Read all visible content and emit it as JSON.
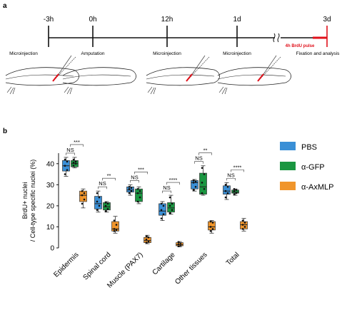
{
  "panel_a": {
    "label": "a",
    "timepoints": [
      "-3h",
      "0h",
      "12h",
      "1d",
      "3d"
    ],
    "events": [
      "Microinjection",
      "Amputation",
      "Microinjection",
      "Microinjection",
      "Fixation and analysis"
    ],
    "pulse_label": "4h BrdU pulse",
    "pulse_color": "#e0101a"
  },
  "panel_b": {
    "label": "b"
  },
  "chart_data": {
    "type": "box",
    "ylabel": "BrdU+ nuclei\n/ Cell-type specific nuclei (%)",
    "ylim": [
      0,
      45
    ],
    "yticks": [
      0,
      10,
      20,
      30,
      40
    ],
    "categories": [
      "Epidermis",
      "Spinal cord",
      "Muscle (PAX7)",
      "Cartilage",
      "Other tissues",
      "Total"
    ],
    "series": [
      {
        "name": "PBS",
        "color": "#3a8fd6",
        "boxes": [
          {
            "min": 34,
            "q1": 36.5,
            "median": 39,
            "q3": 41.5,
            "max": 43,
            "points": [
              35,
              37,
              39,
              41,
              42
            ]
          },
          {
            "min": 17,
            "q1": 18.5,
            "median": 21,
            "q3": 24.5,
            "max": 27,
            "points": [
              18,
              20,
              22,
              24,
              26
            ]
          },
          {
            "min": 25,
            "q1": 26.5,
            "median": 27.5,
            "q3": 29,
            "max": 30,
            "points": [
              26,
              27,
              28,
              28.5,
              29
            ]
          },
          {
            "min": 13,
            "q1": 15.5,
            "median": 17.5,
            "q3": 21,
            "max": 22,
            "points": [
              14,
              16,
              18,
              20,
              21
            ]
          },
          {
            "min": 27,
            "q1": 28,
            "median": 31,
            "q3": 32,
            "max": 32.5,
            "points": [
              27.5,
              29,
              31,
              31.5,
              32
            ]
          },
          {
            "min": 23,
            "q1": 25.5,
            "median": 27,
            "q3": 29.5,
            "max": 31,
            "points": [
              24,
              26,
              27,
              29,
              30
            ]
          }
        ]
      },
      {
        "name": "α-GFP",
        "color": "#1a9641",
        "boxes": [
          {
            "min": 38,
            "q1": 38.5,
            "median": 40,
            "q3": 41.5,
            "max": 43,
            "points": [
              39,
              40,
              40.5,
              41,
              42
            ]
          },
          {
            "min": 17,
            "q1": 18,
            "median": 19.5,
            "q3": 21.5,
            "max": 22,
            "points": [
              17.5,
              18.5,
              20,
              21,
              21.5
            ]
          },
          {
            "min": 21,
            "q1": 22,
            "median": 26,
            "q3": 28,
            "max": 29,
            "points": [
              22,
              24,
              26,
              27,
              28
            ]
          },
          {
            "min": 16,
            "q1": 17,
            "median": 19,
            "q3": 21.5,
            "max": 25,
            "points": [
              16.5,
              18,
              20,
              21,
              24
            ]
          },
          {
            "min": 25,
            "q1": 25.5,
            "median": 29,
            "q3": 35.5,
            "max": 39,
            "points": [
              26,
              28,
              31,
              35,
              38
            ]
          },
          {
            "min": 25,
            "q1": 26,
            "median": 26.5,
            "q3": 27.5,
            "max": 28,
            "points": [
              25.5,
              26,
              27,
              27.5,
              28
            ]
          }
        ]
      },
      {
        "name": "α-AxMLP",
        "color": "#f0952b",
        "boxes": [
          {
            "min": 19,
            "q1": 22,
            "median": 25,
            "q3": 27,
            "max": 28,
            "points": [
              21,
              23,
              25,
              26,
              27
            ]
          },
          {
            "min": 7,
            "q1": 8,
            "median": 9,
            "q3": 12.5,
            "max": 15,
            "points": [
              8,
              8.5,
              9,
              11,
              13
            ]
          },
          {
            "min": 2,
            "q1": 2.5,
            "median": 3.5,
            "q3": 5,
            "max": 6,
            "points": [
              2.5,
              3,
              4,
              5,
              5.5
            ]
          },
          {
            "min": 0.5,
            "q1": 1,
            "median": 1.5,
            "q3": 2.5,
            "max": 3,
            "points": [
              0.8,
              1.2,
              1.8,
              2.2,
              2.8
            ]
          },
          {
            "min": 7,
            "q1": 8.5,
            "median": 10,
            "q3": 12.5,
            "max": 13,
            "points": [
              8,
              9,
              10,
              12,
              12.5
            ]
          },
          {
            "min": 8,
            "q1": 9,
            "median": 11,
            "q3": 12.5,
            "max": 14,
            "points": [
              9,
              10,
              11,
              12,
              13
            ]
          }
        ]
      }
    ],
    "significance": [
      {
        "pbs_vs_gfp": "NS",
        "vs_axmlp": "***"
      },
      {
        "pbs_vs_gfp": "NS",
        "vs_axmlp": "**"
      },
      {
        "pbs_vs_gfp": "NS",
        "vs_axmlp": "***"
      },
      {
        "pbs_vs_gfp": "NS",
        "vs_axmlp": "****"
      },
      {
        "pbs_vs_gfp": "NS",
        "vs_axmlp": "**"
      },
      {
        "pbs_vs_gfp": "NS",
        "vs_axmlp": "****"
      }
    ],
    "legend_position": "right"
  }
}
